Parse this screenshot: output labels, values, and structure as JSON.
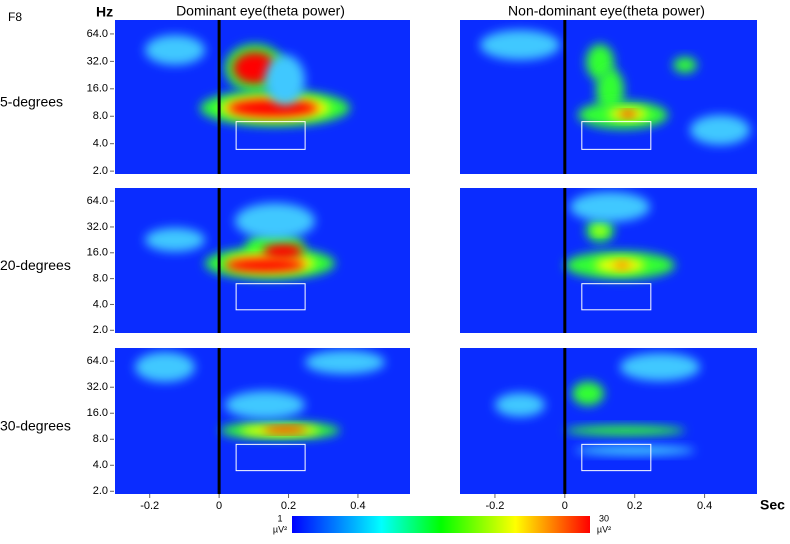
{
  "chart_data": {
    "type": "heatmap",
    "channel": "F8",
    "y_label": "Hz",
    "x_label": "Sec",
    "columns": [
      "Dominant eye(theta power)",
      "Non-dominant eye(theta power)"
    ],
    "rows": [
      "5-degrees",
      "20-degrees",
      "30-degrees"
    ],
    "y_log": true,
    "ylim": [
      1.86,
      91
    ],
    "yticks": [
      {
        "value": 2,
        "label": "2.0"
      },
      {
        "value": 4,
        "label": "4.0"
      },
      {
        "value": 8,
        "label": "8.0"
      },
      {
        "value": 16,
        "label": "16.0"
      },
      {
        "value": 32,
        "label": "32.0"
      },
      {
        "value": 64,
        "label": "64.0"
      }
    ],
    "xlim": [
      -0.3,
      0.55
    ],
    "xticks": [
      -0.2,
      0,
      0.2,
      0.4
    ],
    "clim": [
      1,
      30
    ],
    "colorbar_unit": "µV²"
  }
}
